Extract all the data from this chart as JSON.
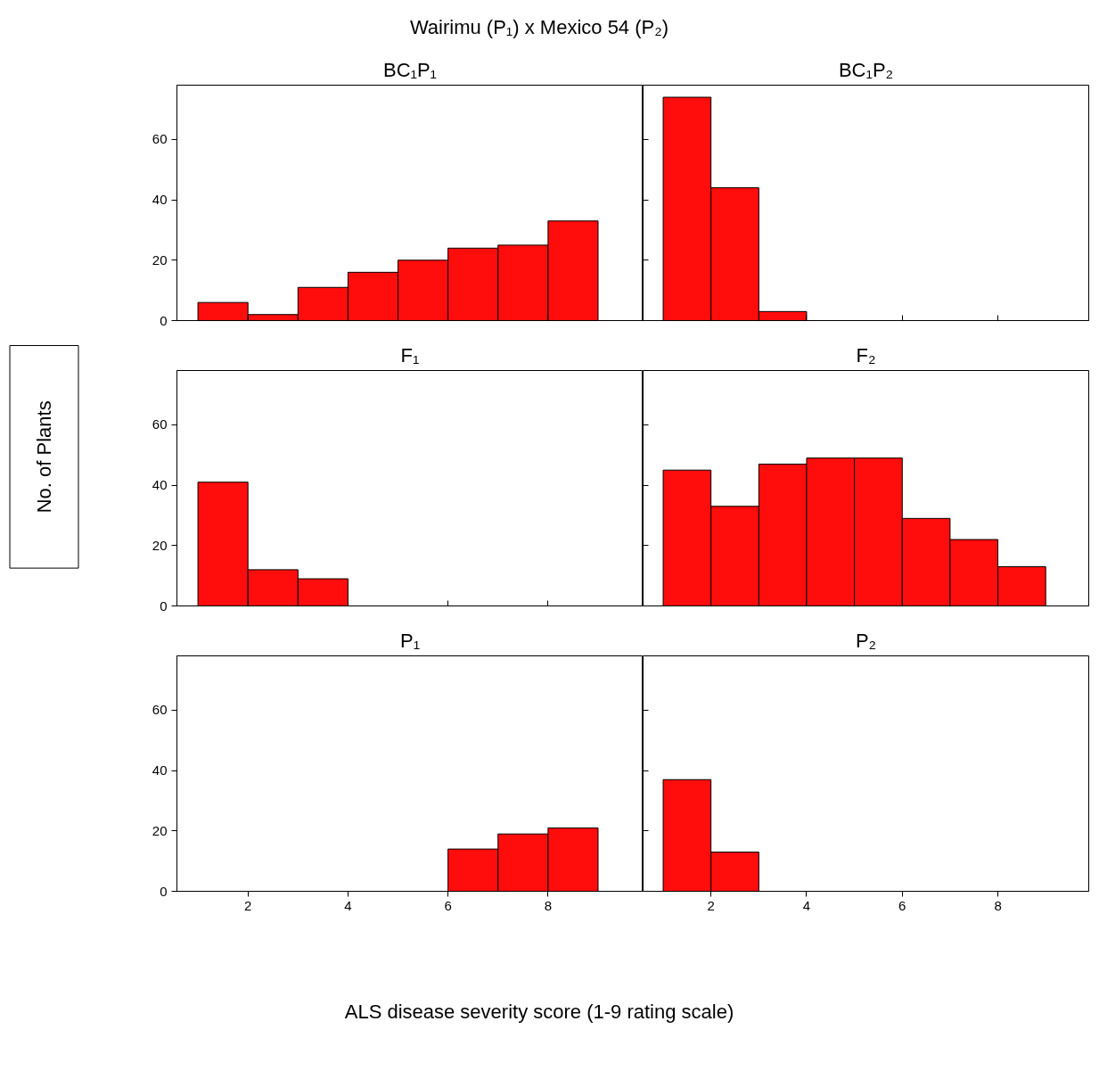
{
  "chart_data": [
    {
      "type": "histogram",
      "title": "BC₁P₁",
      "annotations": [
        "Wairimu (P₁) x Mexico 54 (P₂)"
      ],
      "bins": [
        1,
        2,
        3,
        4,
        5,
        6,
        7,
        8,
        9
      ],
      "values": [
        6,
        2,
        11,
        16,
        20,
        24,
        25,
        33
      ],
      "color": "#ff0c0c",
      "xlim": [
        0.58,
        9.9
      ],
      "ylim": [
        0,
        78
      ],
      "xticks": [
        2,
        4,
        6,
        8
      ],
      "yticks": [
        0,
        20,
        40,
        60
      ],
      "tick_labels": "y",
      "grid": false
    },
    {
      "type": "histogram",
      "title": "BC₁P₂",
      "bins": [
        1,
        2,
        3,
        4,
        5,
        6,
        7,
        8,
        9
      ],
      "values": [
        74,
        44,
        3,
        0,
        0,
        0,
        0,
        0
      ],
      "color": "#ff0c0c",
      "xlim": [
        0.58,
        9.9
      ],
      "ylim": [
        0,
        78
      ],
      "xticks": [
        2,
        4,
        6,
        8
      ],
      "yticks": [
        0,
        20,
        40,
        60
      ],
      "tick_labels": false,
      "grid": false
    },
    {
      "type": "histogram",
      "title": "F₁",
      "ylabel": "No. of Plants",
      "bins": [
        1,
        2,
        3,
        4,
        5,
        6,
        7,
        8,
        9
      ],
      "values": [
        41,
        12,
        9,
        0,
        0,
        0,
        0,
        0
      ],
      "color": "#ff0c0c",
      "xlim": [
        0.58,
        9.9
      ],
      "ylim": [
        0,
        78
      ],
      "xticks": [
        2,
        4,
        6,
        8
      ],
      "yticks": [
        0,
        20,
        40,
        60
      ],
      "tick_labels": "y",
      "grid": false
    },
    {
      "type": "histogram",
      "title": "F₂",
      "bins": [
        1,
        2,
        3,
        4,
        5,
        6,
        7,
        8,
        9
      ],
      "values": [
        45,
        33,
        47,
        49,
        49,
        29,
        22,
        13
      ],
      "color": "#ff0c0c",
      "xlim": [
        0.58,
        9.9
      ],
      "ylim": [
        0,
        78
      ],
      "xticks": [
        2,
        4,
        6,
        8
      ],
      "yticks": [
        0,
        20,
        40,
        60
      ],
      "tick_labels": false,
      "grid": false
    },
    {
      "type": "histogram",
      "title": "P₁",
      "xlabel": "ALS disease severity score (1-9 rating scale)",
      "bins": [
        1,
        2,
        3,
        4,
        5,
        6,
        7,
        8,
        9
      ],
      "values": [
        0,
        0,
        0,
        0,
        0,
        14,
        19,
        21
      ],
      "color": "#ff0c0c",
      "xlim": [
        0.58,
        9.9
      ],
      "ylim": [
        0,
        78
      ],
      "xticks": [
        2,
        4,
        6,
        8
      ],
      "yticks": [
        0,
        20,
        40,
        60
      ],
      "grid": false
    },
    {
      "type": "histogram",
      "title": "P₂",
      "bins": [
        1,
        2,
        3,
        4,
        5,
        6,
        7,
        8,
        9
      ],
      "values": [
        37,
        13,
        0,
        0,
        0,
        0,
        0,
        0
      ],
      "color": "#ff0c0c",
      "xlim": [
        0.58,
        9.9
      ],
      "ylim": [
        0,
        78
      ],
      "xticks": [
        2,
        4,
        6,
        8
      ],
      "yticks": [
        0,
        20,
        40,
        60
      ],
      "tick_labels": "x",
      "grid": false
    }
  ]
}
